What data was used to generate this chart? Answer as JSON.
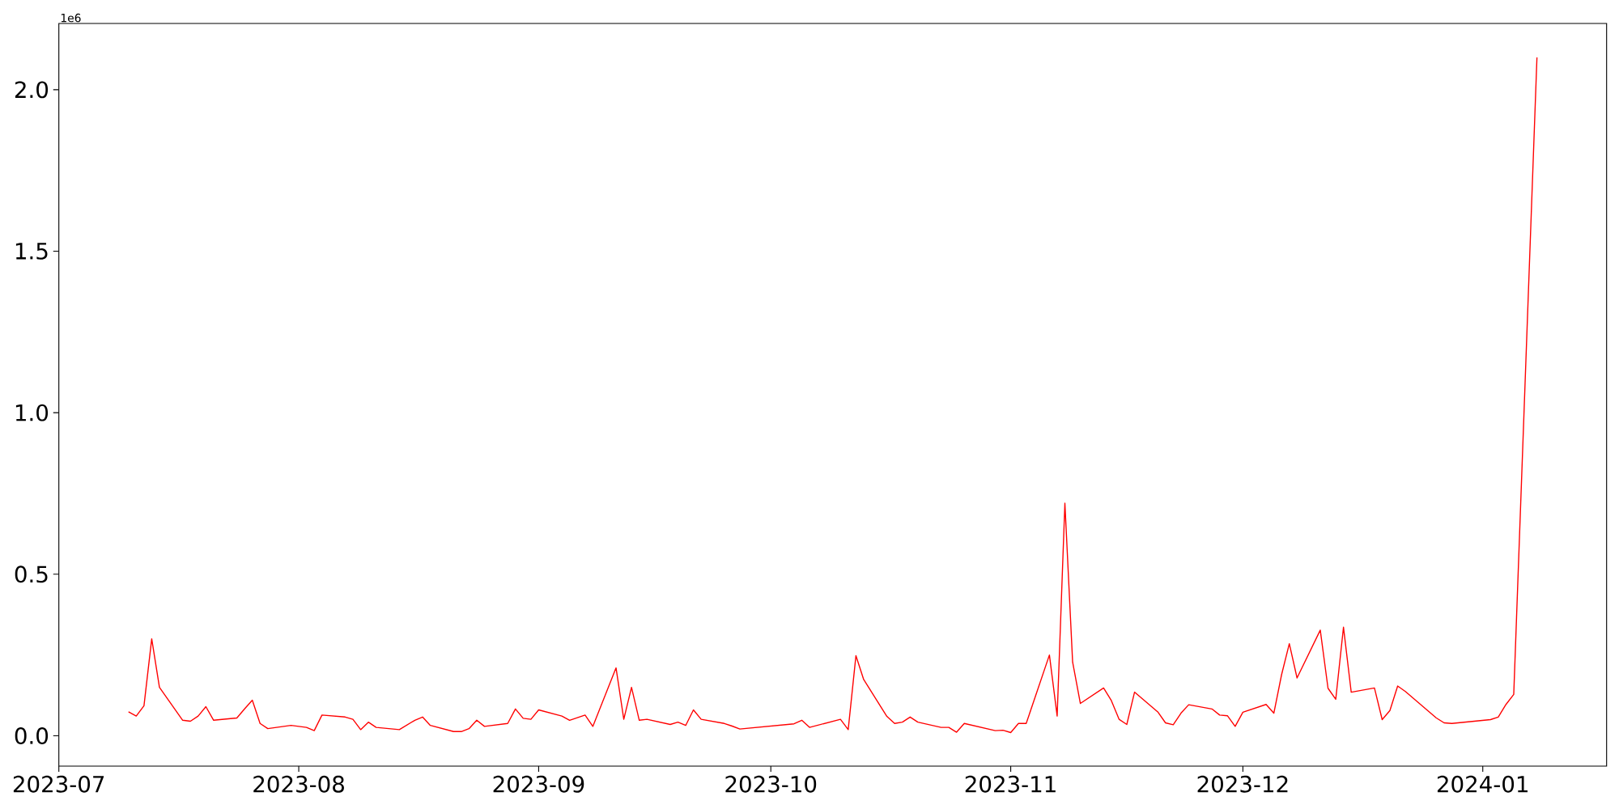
{
  "chart_data": {
    "type": "line",
    "color": "#ff0000",
    "x": [
      "2023-07-10",
      "2023-07-11",
      "2023-07-12",
      "2023-07-13",
      "2023-07-14",
      "2023-07-17",
      "2023-07-18",
      "2023-07-19",
      "2023-07-20",
      "2023-07-21",
      "2023-07-24",
      "2023-07-25",
      "2023-07-26",
      "2023-07-27",
      "2023-07-28",
      "2023-07-31",
      "2023-08-02",
      "2023-08-03",
      "2023-08-04",
      "2023-08-07",
      "2023-08-08",
      "2023-08-09",
      "2023-08-10",
      "2023-08-11",
      "2023-08-14",
      "2023-08-16",
      "2023-08-17",
      "2023-08-18",
      "2023-08-21",
      "2023-08-22",
      "2023-08-23",
      "2023-08-24",
      "2023-08-25",
      "2023-08-28",
      "2023-08-29",
      "2023-08-30",
      "2023-08-31",
      "2023-09-01",
      "2023-09-04",
      "2023-09-05",
      "2023-09-07",
      "2023-09-08",
      "2023-09-11",
      "2023-09-12",
      "2023-09-13",
      "2023-09-14",
      "2023-09-15",
      "2023-09-18",
      "2023-09-19",
      "2023-09-20",
      "2023-09-21",
      "2023-09-22",
      "2023-09-25",
      "2023-09-26",
      "2023-09-27",
      "2023-10-04",
      "2023-10-05",
      "2023-10-06",
      "2023-10-10",
      "2023-10-11",
      "2023-10-12",
      "2023-10-13",
      "2023-10-16",
      "2023-10-17",
      "2023-10-18",
      "2023-10-19",
      "2023-10-20",
      "2023-10-23",
      "2023-10-24",
      "2023-10-25",
      "2023-10-26",
      "2023-10-30",
      "2023-10-31",
      "2023-11-01",
      "2023-11-02",
      "2023-11-03",
      "2023-11-06",
      "2023-11-07",
      "2023-11-08",
      "2023-11-09",
      "2023-11-10",
      "2023-11-13",
      "2023-11-14",
      "2023-11-15",
      "2023-11-16",
      "2023-11-17",
      "2023-11-20",
      "2023-11-21",
      "2023-11-22",
      "2023-11-23",
      "2023-11-24",
      "2023-11-27",
      "2023-11-28",
      "2023-11-29",
      "2023-11-30",
      "2023-12-01",
      "2023-12-04",
      "2023-12-05",
      "2023-12-06",
      "2023-12-07",
      "2023-12-08",
      "2023-12-11",
      "2023-12-12",
      "2023-12-13",
      "2023-12-14",
      "2023-12-15",
      "2023-12-18",
      "2023-12-19",
      "2023-12-20",
      "2023-12-21",
      "2023-12-22",
      "2023-12-26",
      "2023-12-27",
      "2023-12-28",
      "2024-01-02",
      "2024-01-03",
      "2024-01-04",
      "2024-01-05",
      "2024-01-08"
    ],
    "values": [
      0.074,
      0.061,
      0.093,
      0.3,
      0.15,
      0.048,
      0.045,
      0.061,
      0.09,
      0.048,
      0.055,
      0.083,
      0.11,
      0.038,
      0.022,
      0.032,
      0.026,
      0.016,
      0.064,
      0.058,
      0.051,
      0.019,
      0.042,
      0.026,
      0.019,
      0.048,
      0.058,
      0.032,
      0.013,
      0.013,
      0.022,
      0.048,
      0.029,
      0.038,
      0.083,
      0.054,
      0.051,
      0.08,
      0.061,
      0.048,
      0.064,
      0.029,
      0.21,
      0.051,
      0.15,
      0.048,
      0.051,
      0.035,
      0.042,
      0.032,
      0.08,
      0.051,
      0.038,
      0.03,
      0.021,
      0.037,
      0.048,
      0.026,
      0.051,
      0.019,
      0.248,
      0.174,
      0.06,
      0.038,
      0.042,
      0.058,
      0.042,
      0.026,
      0.026,
      0.011,
      0.038,
      0.016,
      0.017,
      0.01,
      0.038,
      0.038,
      0.25,
      0.061,
      0.72,
      0.228,
      0.1,
      0.148,
      0.109,
      0.051,
      0.035,
      0.135,
      0.074,
      0.04,
      0.034,
      0.07,
      0.096,
      0.083,
      0.064,
      0.062,
      0.029,
      0.073,
      0.097,
      0.07,
      0.189,
      0.285,
      0.179,
      0.327,
      0.147,
      0.113,
      0.336,
      0.135,
      0.148,
      0.05,
      0.078,
      0.154,
      0.137,
      0.055,
      0.04,
      0.038,
      0.05,
      0.058,
      0.097,
      0.128,
      2.1
    ],
    "xlim": [
      "2023-07-01",
      "2024-01-17"
    ],
    "xticks": [
      "2023-07",
      "2023-08",
      "2023-09",
      "2023-10",
      "2023-11",
      "2023-12",
      "2024-01"
    ],
    "ylim": [
      -0.094,
      2.205
    ],
    "yticks": [
      {
        "value": 0,
        "label": "0.0"
      },
      {
        "value": 0.5,
        "label": "0.5"
      },
      {
        "value": 1,
        "label": "1.0"
      },
      {
        "value": 1.5,
        "label": "1.5"
      },
      {
        "value": 2,
        "label": "2.0"
      }
    ],
    "annotations": [
      "1e6"
    ]
  }
}
